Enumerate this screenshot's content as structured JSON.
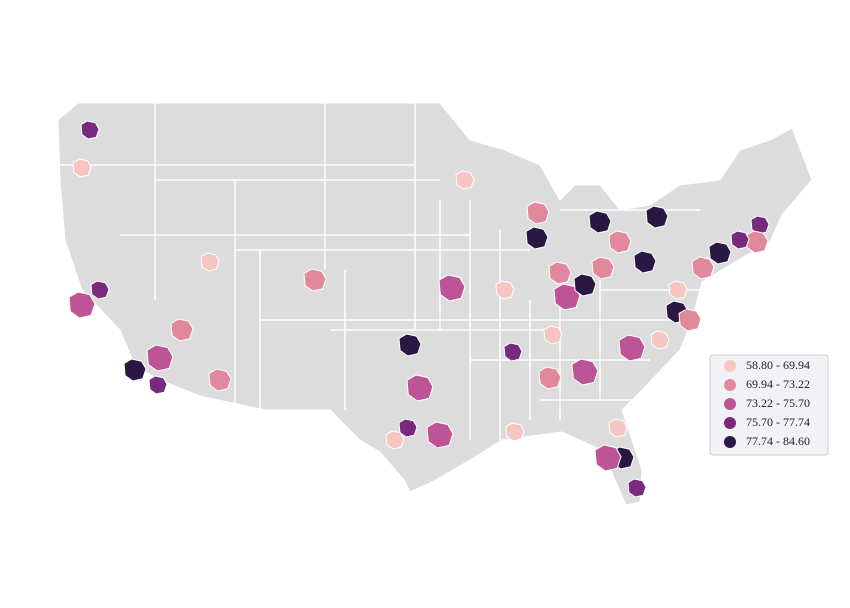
{
  "legend": {
    "items": [
      {
        "label": "58.80 - 69.94",
        "color": "#f6c7c1"
      },
      {
        "label": "69.94 - 73.22",
        "color": "#e2889c"
      },
      {
        "label": "73.22 - 75.70",
        "color": "#bd5498"
      },
      {
        "label": "75.70 - 77.74",
        "color": "#782a7f"
      },
      {
        "label": "77.74 - 84.60",
        "color": "#2a1744"
      }
    ]
  }
}
